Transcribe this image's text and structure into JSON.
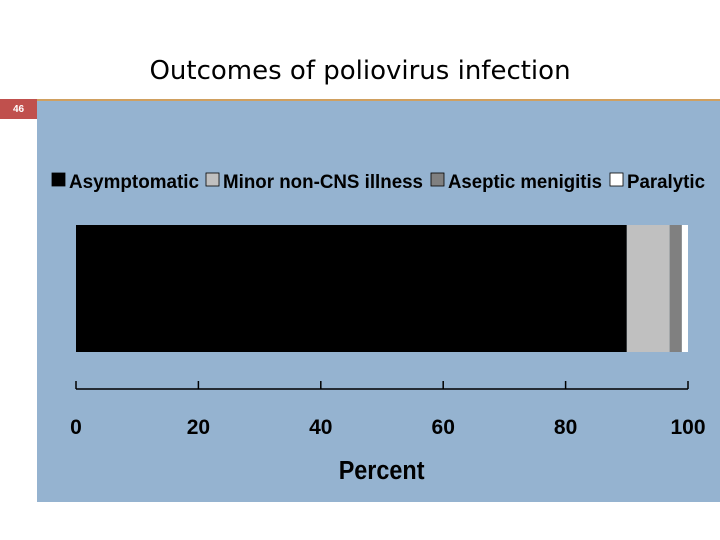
{
  "slide": {
    "title": "Outcomes of poliovirus infection",
    "page_number": "46"
  },
  "chart_data": {
    "type": "bar",
    "orientation": "horizontal-stacked",
    "xlabel": "Percent",
    "xlim": [
      0,
      100
    ],
    "ticks": [
      "0",
      "20",
      "40",
      "60",
      "80",
      "100"
    ],
    "tick_values": [
      0,
      20,
      40,
      60,
      80,
      100
    ],
    "series": [
      {
        "name": "Asymptomatic",
        "value": 90,
        "color": "#000000"
      },
      {
        "name": "Minor non-CNS illness",
        "value": 7,
        "color": "#c0c0c0"
      },
      {
        "name": "Aseptic menigitis",
        "value": 2,
        "color": "#808080"
      },
      {
        "name": "Paralytic",
        "value": 1,
        "color": "#ffffff"
      }
    ],
    "legend_position": "top"
  }
}
